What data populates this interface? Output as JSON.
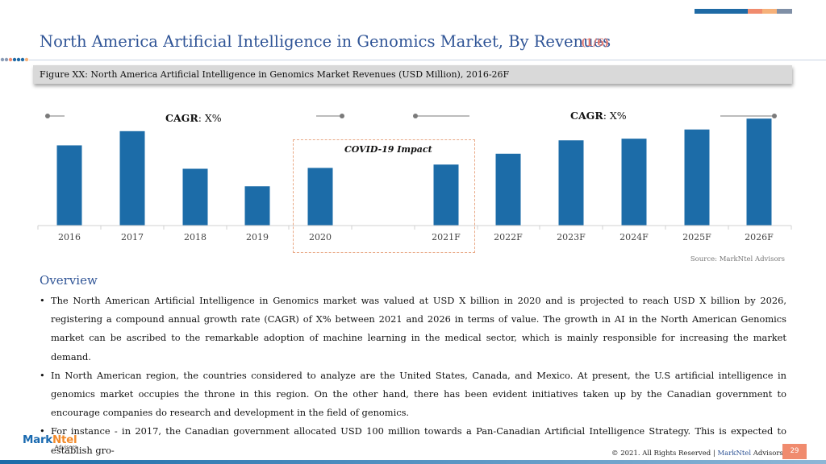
{
  "header": {
    "title": "North America Artificial Intelligence in Genomics Market, By Revenues",
    "page_indicator": "(1/6)",
    "accent_colors": [
      "#1f6aa5",
      "#f08b6e",
      "#f6b17a",
      "#7f8fa6"
    ]
  },
  "figure": {
    "caption": "Figure XX: North America Artificial Intelligence in Genomics Market Revenues (USD Million), 2016-26F"
  },
  "chart_data": {
    "type": "bar",
    "categories": [
      "2016",
      "2017",
      "2018",
      "2019",
      "2020",
      "2021F",
      "2022F",
      "2023F",
      "2024F",
      "2025F",
      "2026F"
    ],
    "values": [
      96,
      113,
      68,
      47,
      69,
      73,
      86,
      102,
      104,
      115,
      128
    ],
    "ylim": [
      0,
      135
    ],
    "bar_color": "#1c6ca8",
    "annotations": {
      "cagr_left_label": "CAGR",
      "cagr_left_value": ": X%",
      "cagr_right_label": "CAGR",
      "cagr_right_value": ": X%",
      "covid_label": "COVID-19 Impact"
    },
    "source": "Source: MarkNtel Advisors"
  },
  "overview": {
    "heading": "Overview",
    "bullets": [
      "The North American Artificial Intelligence in Genomics market was valued at USD X billion in 2020 and is projected to reach USD X billion by 2026, registering a compound annual growth rate (CAGR) of X% between 2021 and 2026 in terms of value. The growth in AI in the North American Genomics market can be ascribed to the remarkable adoption of machine learning in the medical sector, which is mainly responsible for increasing the market demand.",
      "In North American region, the countries considered to analyze are the United States, Canada, and Mexico. At present, the U.S artificial intelligence in genomics market occupies the throne in this region. On the other hand, there has been evident initiatives taken up by the Canadian government to encourage companies do research and development in the field of genomics.",
      "For instance - in 2017, the Canadian government allocated USD 100 million towards a Pan-Canadian Artificial Intelligence Strategy. This is expected to establish gro-"
    ]
  },
  "footer": {
    "logo_part1": "Mark",
    "logo_part2": "Ntel",
    "logo_sub": "Advisors",
    "copyright": "© 2021. All Rights Reserved | ",
    "brand_a": "MarkNtel",
    "brand_b": " Advisors",
    "page_number": "29"
  }
}
